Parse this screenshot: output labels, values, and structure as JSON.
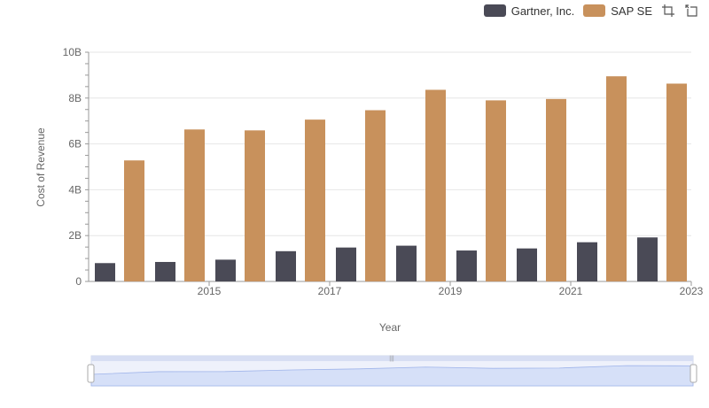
{
  "chart_data": {
    "type": "bar",
    "x": [
      2014,
      2015,
      2016,
      2017,
      2018,
      2019,
      2020,
      2021,
      2022,
      2023
    ],
    "series": [
      {
        "name": "Gartner, Inc.",
        "color": "#4a4a56",
        "values": [
          0.8,
          0.85,
          0.95,
          1.32,
          1.48,
          1.56,
          1.35,
          1.44,
          1.71,
          1.92
        ]
      },
      {
        "name": "SAP SE",
        "color": "#c8915c",
        "values": [
          5.28,
          6.63,
          6.59,
          7.06,
          7.47,
          8.36,
          7.9,
          7.96,
          8.95,
          8.63
        ]
      }
    ],
    "xlabel": "Year",
    "ylabel": "Cost of Revenue",
    "ylim": [
      0,
      10
    ],
    "yticks": [
      "0",
      "2B",
      "4B",
      "6B",
      "8B",
      "10B"
    ],
    "xticks": [
      "2015",
      "2017",
      "2019",
      "2021",
      "2023"
    ],
    "grid": true,
    "legend_position": "top-right"
  },
  "toolbar": {
    "icons": [
      "zoom-icon",
      "reset-icon"
    ]
  }
}
